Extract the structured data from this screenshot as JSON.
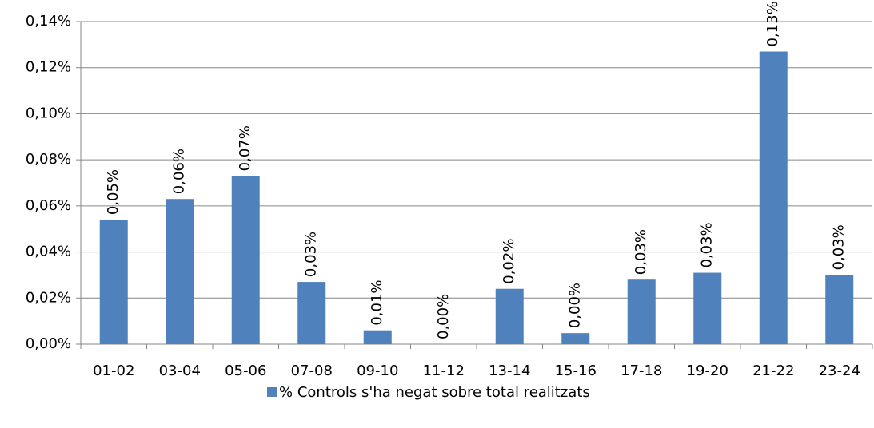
{
  "chart_data": {
    "type": "bar",
    "categories": [
      "01-02",
      "03-04",
      "05-06",
      "07-08",
      "09-10",
      "11-12",
      "13-14",
      "15-16",
      "17-18",
      "19-20",
      "21-22",
      "23-24"
    ],
    "series": [
      {
        "name": "% Controls s'ha negat sobre total realitzats",
        "color": "#4f81bd",
        "values": [
          0.054,
          0.063,
          0.073,
          0.027,
          0.006,
          0,
          0.024,
          0.0048,
          0.028,
          0.031,
          0.127,
          0.03
        ],
        "value_labels": [
          "0,05%",
          "0,06%",
          "0,07%",
          "0,03%",
          "0,01%",
          "0,00%",
          "0,02%",
          "0,00%",
          "0,03%",
          "0,03%",
          "0,13%",
          "0,03%"
        ]
      }
    ],
    "ylim": [
      0,
      0.14
    ],
    "yticks": [
      {
        "value": 0,
        "label": "0,00%"
      },
      {
        "value": 0.02,
        "label": "0,02%"
      },
      {
        "value": 0.04,
        "label": "0,04%"
      },
      {
        "value": 0.06,
        "label": "0,06%"
      },
      {
        "value": 0.08,
        "label": "0,08%"
      },
      {
        "value": 0.1,
        "label": "0,10%"
      },
      {
        "value": 0.12,
        "label": "0,12%"
      },
      {
        "value": 0.14,
        "label": "0,14%"
      }
    ],
    "grid": true,
    "legend": "bottom"
  }
}
